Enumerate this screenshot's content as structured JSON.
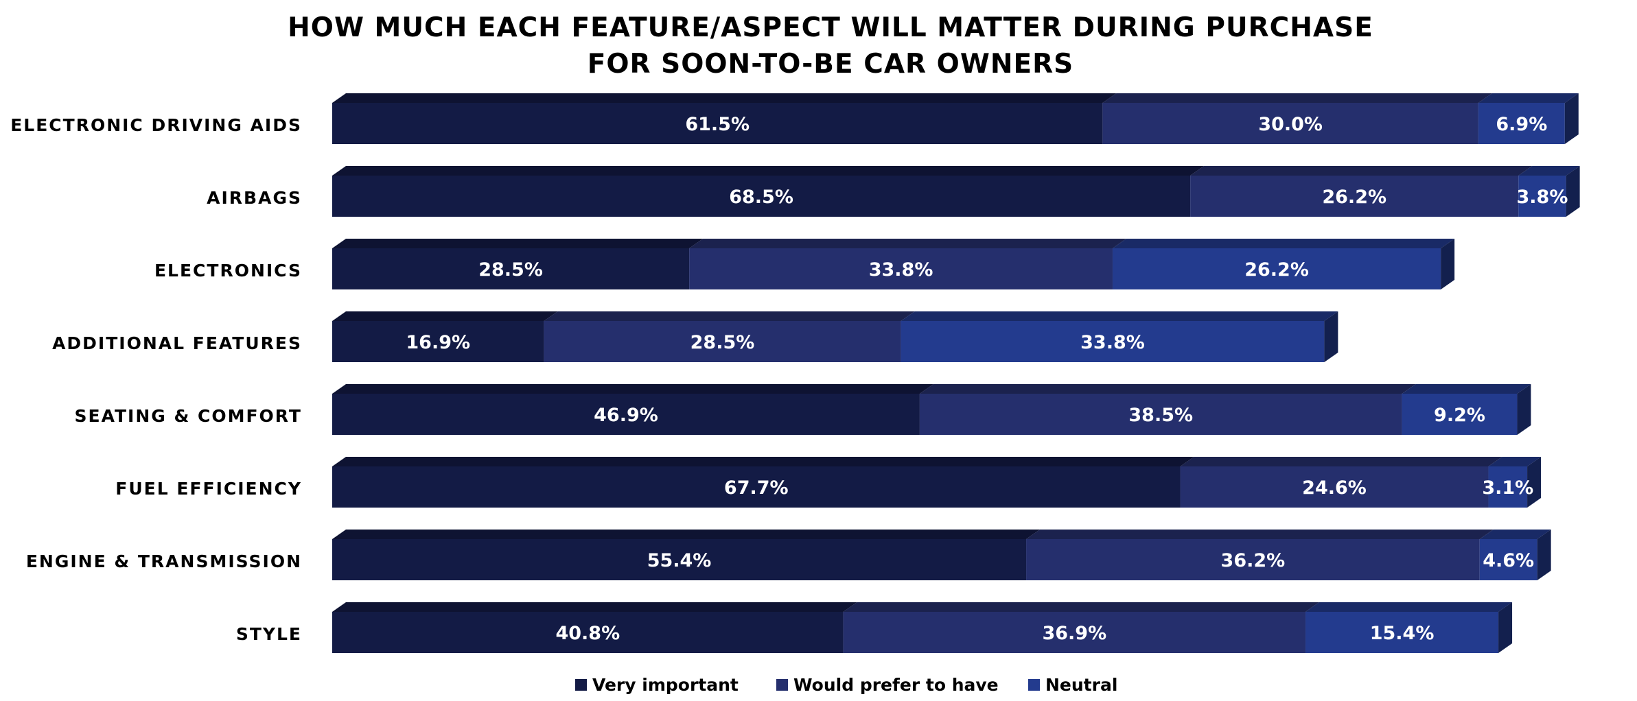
{
  "chart_data": {
    "type": "bar",
    "orientation": "horizontal",
    "stacked": true,
    "style": "3d",
    "title": [
      "HOW MUCH EACH FEATURE/ASPECT WILL MATTER DURING PURCHASE",
      "FOR SOON-TO-BE CAR OWNERS"
    ],
    "categories": [
      "ELECTRONIC DRIVING AIDS",
      "AIRBAGS",
      "ELECTRONICS",
      "ADDITIONAL FEATURES",
      "SEATING & COMFORT",
      "FUEL EFFICIENCY",
      "ENGINE & TRANSMISSION",
      "STYLE"
    ],
    "series": [
      {
        "name": "Very important",
        "color": "#131b45",
        "values": [
          61.5,
          68.5,
          28.5,
          16.9,
          46.9,
          67.7,
          55.4,
          40.8
        ],
        "labels": [
          "61.5%",
          "68.5%",
          "28.5%",
          "16.9%",
          "46.9%",
          "67.7%",
          "55.4%",
          "40.8%"
        ]
      },
      {
        "name": "Would prefer to have",
        "color": "#252f6d",
        "values": [
          30.0,
          26.2,
          33.8,
          28.5,
          38.5,
          24.6,
          36.2,
          36.9
        ],
        "labels": [
          "30.0%",
          "26.2%",
          "33.8%",
          "28.5%",
          "38.5%",
          "24.6%",
          "36.2%",
          "36.9%"
        ]
      },
      {
        "name": "Neutral",
        "color": "#233b8e",
        "values": [
          6.9,
          3.8,
          26.2,
          33.8,
          9.2,
          3.1,
          4.6,
          15.4
        ],
        "labels": [
          "6.9%",
          "3.8%",
          "26.2%",
          "33.8%",
          "9.2%",
          "3.1%",
          "4.6%",
          "15.4%"
        ]
      }
    ],
    "xlim": [
      0,
      100
    ],
    "grid": false,
    "legend_position": "bottom"
  }
}
